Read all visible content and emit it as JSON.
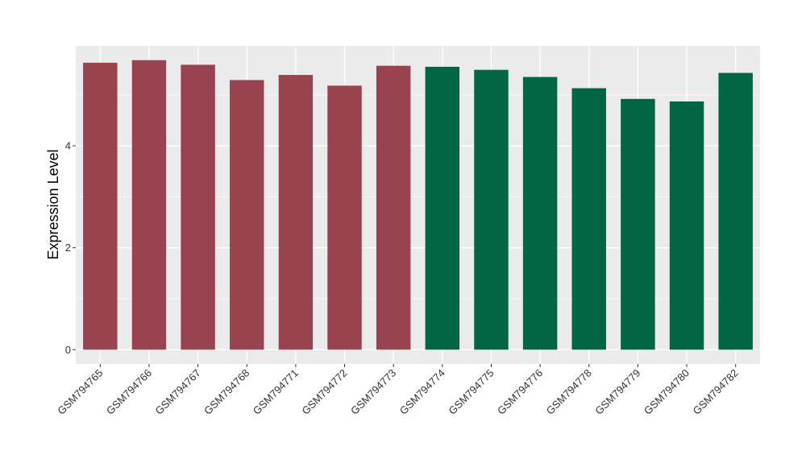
{
  "chart_data": {
    "type": "bar",
    "title": "",
    "xlabel": "",
    "ylabel": "Expression Level",
    "categories": [
      "GSM794765",
      "GSM794766",
      "GSM794767",
      "GSM794768",
      "GSM794771",
      "GSM794772",
      "GSM794773",
      "GSM794774",
      "GSM794775",
      "GSM794776",
      "GSM794778",
      "GSM794779",
      "GSM794780",
      "GSM794782"
    ],
    "values": [
      5.63,
      5.68,
      5.59,
      5.29,
      5.39,
      5.18,
      5.57,
      5.55,
      5.49,
      5.35,
      5.13,
      4.92,
      4.87,
      5.43
    ],
    "bar_colors": [
      "#9a4350",
      "#9a4350",
      "#9a4350",
      "#9a4350",
      "#9a4350",
      "#9a4350",
      "#9a4350",
      "#006644",
      "#006644",
      "#006644",
      "#006644",
      "#006644",
      "#006644",
      "#006644"
    ],
    "yticks": [
      0,
      2,
      4
    ],
    "ylim": [
      -0.28,
      5.96
    ],
    "grid": true,
    "panel_background": "#ebebeb",
    "grid_color": "#ffffff",
    "legend": "none"
  }
}
